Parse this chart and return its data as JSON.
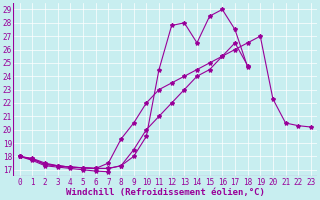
{
  "xlabel": "Windchill (Refroidissement éolien,°C)",
  "background_color": "#c8eef0",
  "line_color": "#990099",
  "x_values": [
    0,
    1,
    2,
    3,
    4,
    5,
    6,
    7,
    8,
    9,
    10,
    11,
    12,
    13,
    14,
    15,
    16,
    17,
    18,
    19,
    20,
    21,
    22,
    23
  ],
  "line1": [
    18,
    17.7,
    17.3,
    17.2,
    17.1,
    17.0,
    16.9,
    16.85,
    null,
    null,
    null,
    null,
    null,
    null,
    null,
    null,
    null,
    null,
    null,
    null,
    null,
    null,
    null,
    null
  ],
  "line2": [
    18,
    17.8,
    17.4,
    17.3,
    17.2,
    17.15,
    17.1,
    17.1,
    17.3,
    18.5,
    20.0,
    21.0,
    22.0,
    23.0,
    24.0,
    24.5,
    25.5,
    26.5,
    24.8,
    null,
    null,
    null,
    null,
    null
  ],
  "line3": [
    18,
    17.85,
    17.5,
    17.3,
    17.2,
    17.15,
    17.1,
    17.5,
    19.3,
    20.5,
    22.0,
    23.0,
    23.5,
    24.0,
    24.5,
    25.0,
    25.5,
    26.0,
    26.5,
    27.0,
    22.3,
    20.5,
    20.3,
    20.2
  ],
  "line4": [
    18,
    17.8,
    17.4,
    17.3,
    17.2,
    17.15,
    17.1,
    17.1,
    17.3,
    18.0,
    19.5,
    24.5,
    27.8,
    28.0,
    26.5,
    28.5,
    29.0,
    27.5,
    24.7,
    null,
    null,
    null,
    null,
    null
  ],
  "xlim": [
    -0.5,
    23.5
  ],
  "ylim": [
    16.5,
    29.5
  ],
  "yticks": [
    17,
    18,
    19,
    20,
    21,
    22,
    23,
    24,
    25,
    26,
    27,
    28,
    29
  ],
  "xticks": [
    0,
    1,
    2,
    3,
    4,
    5,
    6,
    7,
    8,
    9,
    10,
    11,
    12,
    13,
    14,
    15,
    16,
    17,
    18,
    19,
    20,
    21,
    22,
    23
  ],
  "tick_fontsize": 5.5,
  "label_fontsize": 6.5
}
